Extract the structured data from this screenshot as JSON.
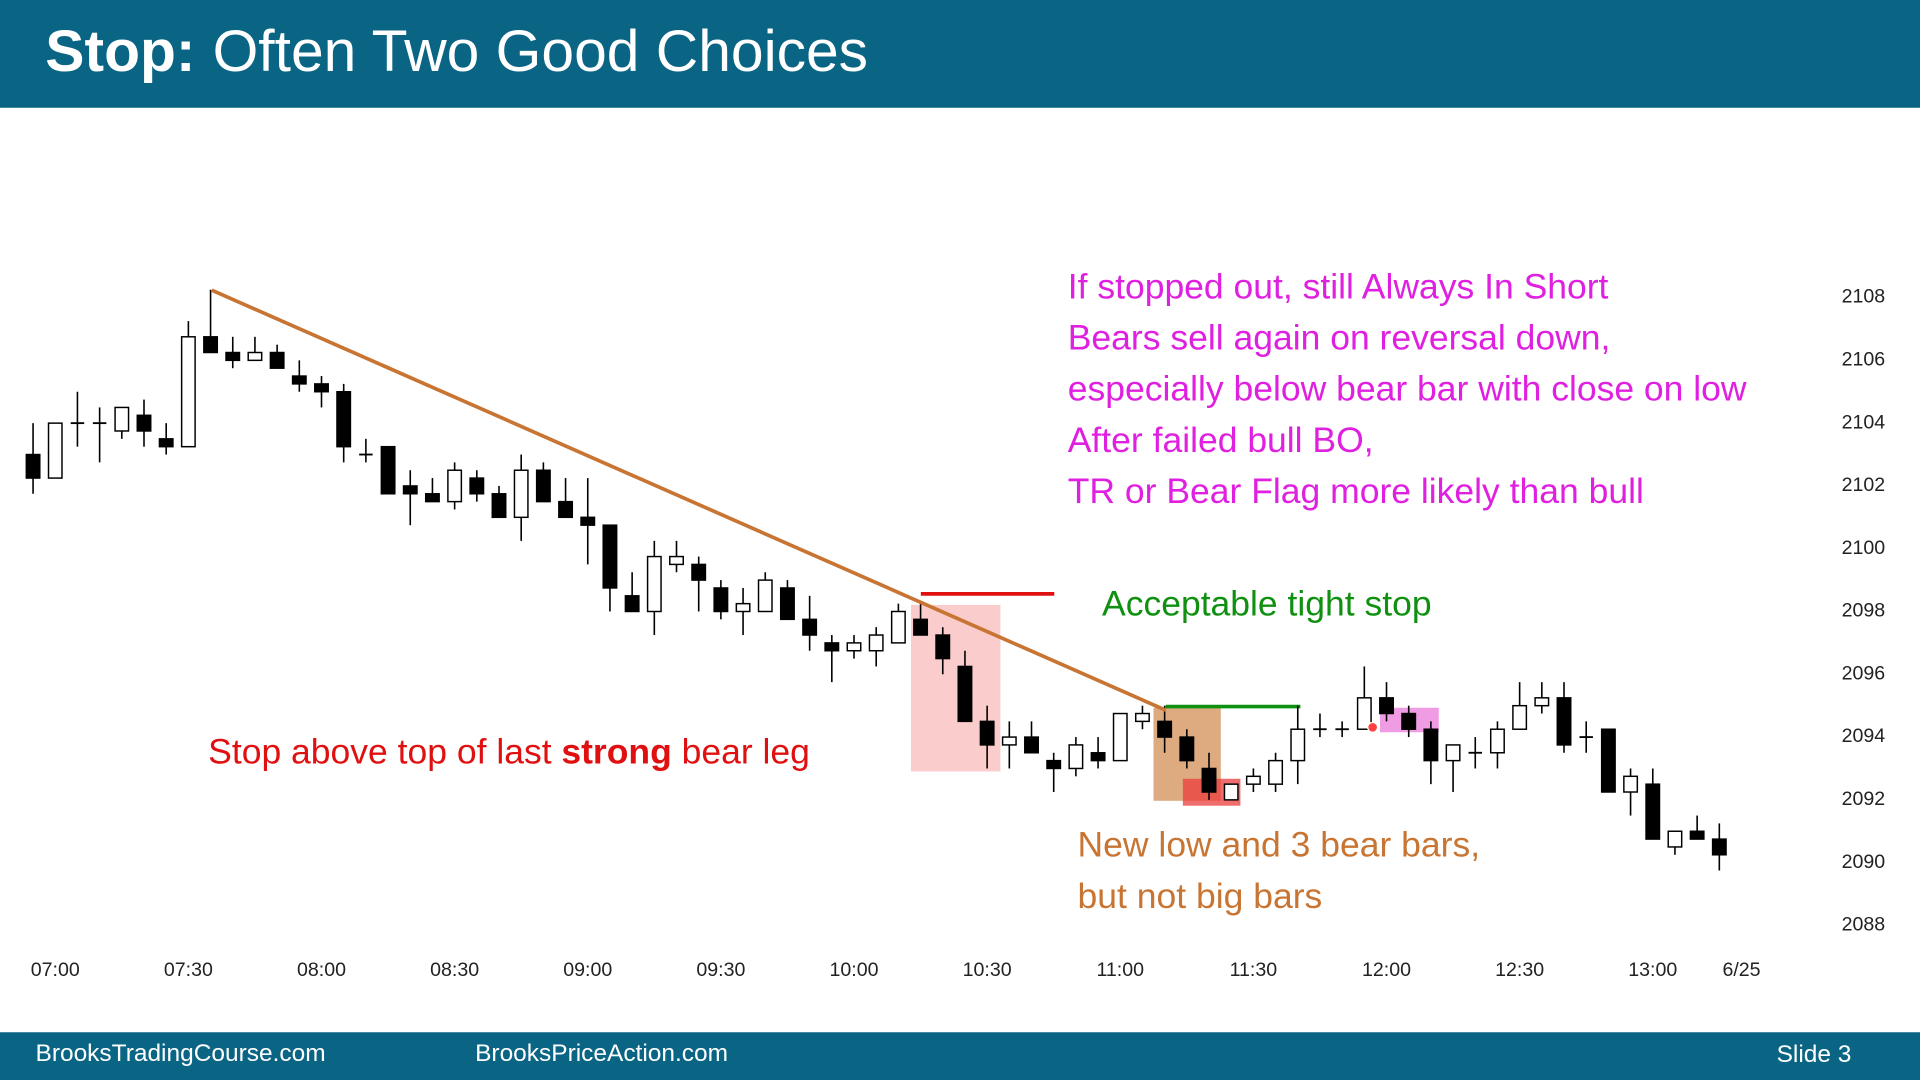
{
  "chart_data": {
    "type": "candlestick",
    "title_bold": "Stop:",
    "title": "Often Two Good Choices",
    "categories": [
      null,
      "07:00",
      null,
      null,
      null,
      null,
      null,
      "07:30",
      null,
      null,
      null,
      null,
      null,
      "08:00",
      null,
      null,
      null,
      null,
      null,
      "08:30",
      null,
      null,
      null,
      null,
      null,
      "09:00",
      null,
      null,
      null,
      null,
      null,
      "09:30",
      null,
      null,
      null,
      null,
      null,
      "10:00",
      null,
      null,
      null,
      null,
      null,
      "10:30",
      null,
      null,
      null,
      null,
      null,
      "11:00",
      null,
      null,
      null,
      null,
      null,
      "11:30",
      null,
      null,
      null,
      null,
      null,
      "12:00",
      null,
      null,
      null,
      null,
      null,
      "12:30",
      null,
      null,
      null,
      null,
      null,
      "13:00",
      null,
      null,
      null,
      "6/25"
    ],
    "open": [
      2103,
      2102.25,
      2104,
      2104,
      2103.75,
      2104.25,
      2103.5,
      2103.25,
      2106.75,
      2106.25,
      2106,
      2106.25,
      2105.5,
      2105.25,
      2105,
      2103,
      2103.25,
      2102,
      2101.75,
      2101.5,
      2102.25,
      2101.75,
      2101,
      2102.5,
      2101.5,
      2101,
      2100.75,
      2098.5,
      2098,
      2099.5,
      2099.5,
      2098.75,
      2098,
      2098,
      2098.75,
      2097.75,
      2097,
      2096.75,
      2096.75,
      2097,
      2097.75,
      2097.25,
      2096.25,
      2094.5,
      2093.75,
      2094,
      2093.25,
      2093,
      2093.5,
      2093.25,
      2094.5,
      2094.5,
      2094,
      2093,
      2092,
      2092.5,
      2092.5,
      2093.25,
      2094.25,
      2094.25,
      2094.25,
      2095.25,
      2094.75,
      2094.25,
      2093.25,
      2093.5,
      2093.5,
      2094.25,
      2095,
      2095.25,
      2094,
      2094.25,
      2092.25,
      2092.5,
      2090.5,
      2091,
      2090.75,
      null
    ],
    "high": [
      2104,
      2104,
      2105,
      2104.5,
      2104.5,
      2104.75,
      2104,
      2107.25,
      2108.25,
      2106.75,
      2106.75,
      2106.5,
      2106,
      2105.5,
      2105.25,
      2103.5,
      2103.25,
      2102.5,
      2102.25,
      2102.75,
      2102.5,
      2102,
      2103,
      2102.75,
      2102.25,
      2102.25,
      2100.75,
      2099.25,
      2100.25,
      2100.25,
      2099.75,
      2099,
      2098.75,
      2099.25,
      2099,
      2098.5,
      2097.25,
      2097.25,
      2097.5,
      2098.25,
      2098.25,
      2097.5,
      2096.75,
      2095,
      2094.5,
      2094.5,
      2093.5,
      2094,
      2094,
      2094.75,
      2095,
      2095,
      2094.25,
      2093.5,
      2092.5,
      2093,
      2093.5,
      2095,
      2094.75,
      2094.5,
      2096.25,
      2095.75,
      2095,
      2094.5,
      2093.75,
      2094,
      2094.5,
      2095.75,
      2095.75,
      2095.75,
      2094.5,
      2094.25,
      2093,
      2093,
      2091,
      2091.5,
      2091.25,
      null
    ],
    "low": [
      2101.75,
      2102.25,
      2103.25,
      2102.75,
      2103.5,
      2103.25,
      2103,
      2103.25,
      2106.25,
      2105.75,
      2106,
      2105.75,
      2105,
      2104.5,
      2102.75,
      2102.75,
      2101.75,
      2100.75,
      2101.5,
      2101.25,
      2101.5,
      2101,
      2100.25,
      2101.5,
      2101,
      2099.5,
      2098,
      2098,
      2097.25,
      2099.25,
      2098,
      2097.75,
      2097.25,
      2098,
      2097.75,
      2096.75,
      2095.75,
      2096.5,
      2096.25,
      2097,
      2097.25,
      2096,
      2094.5,
      2093,
      2093,
      2093.5,
      2092.25,
      2092.75,
      2093,
      2093.25,
      2094.25,
      2093.5,
      2093,
      2092,
      2092,
      2092.25,
      2092.25,
      2092.5,
      2094,
      2094,
      2094.25,
      2094.5,
      2094,
      2092.5,
      2092.25,
      2093,
      2093,
      2094.25,
      2094.75,
      2093.5,
      2093.5,
      2092.25,
      2091.5,
      2090.75,
      2090.25,
      2090.75,
      2089.75,
      null
    ],
    "close": [
      2102.25,
      2104,
      2104,
      2104,
      2104.5,
      2103.75,
      2103.25,
      2106.75,
      2106.25,
      2106,
      2106.25,
      2105.75,
      2105.25,
      2105,
      2103.25,
      2103,
      2101.75,
      2101.75,
      2101.5,
      2102.5,
      2101.75,
      2101,
      2102.5,
      2101.5,
      2101,
      2100.75,
      2098.75,
      2098,
      2099.75,
      2099.75,
      2099,
      2098,
      2098.25,
      2099,
      2097.75,
      2097.25,
      2096.75,
      2097,
      2097.25,
      2098,
      2097.25,
      2096.5,
      2094.5,
      2093.75,
      2094,
      2093.5,
      2093,
      2093.75,
      2093.25,
      2094.75,
      2094.75,
      2094,
      2093.25,
      2092.25,
      2092.5,
      2092.75,
      2093.25,
      2094.25,
      2094.25,
      2094.25,
      2095.25,
      2094.75,
      2094.25,
      2093.25,
      2093.75,
      2093.5,
      2094.25,
      2095,
      2095.25,
      2093.75,
      2094,
      2092.25,
      2092.75,
      2090.75,
      2091,
      2090.75,
      2090.25,
      null
    ],
    "up_color": "#ffffff",
    "down_color": "#000000",
    "ylim": [
      2087.25,
      2113.5
    ],
    "yticks": [
      2088,
      2090,
      2092,
      2094,
      2096,
      2098,
      2100,
      2102,
      2104,
      2106,
      2108
    ],
    "grid": false,
    "annotations": {
      "always_in_short": [
        "If stopped out, still Always In Short",
        "Bears sell again on reversal down,",
        "especially below bear bar with close on low",
        "After failed bull BO,",
        "TR or Bear Flag more likely than bull"
      ],
      "tight_stop": "Acceptable tight stop",
      "strong_leg": [
        "Stop above top of last",
        "strong",
        "bear leg"
      ],
      "new_low": [
        "New low and 3 bear bars,",
        "but not big bars"
      ]
    }
  },
  "footer": {
    "left": "BrooksTradingCourse.com",
    "middle": "BrooksPriceAction.com",
    "right": "Slide 3"
  }
}
